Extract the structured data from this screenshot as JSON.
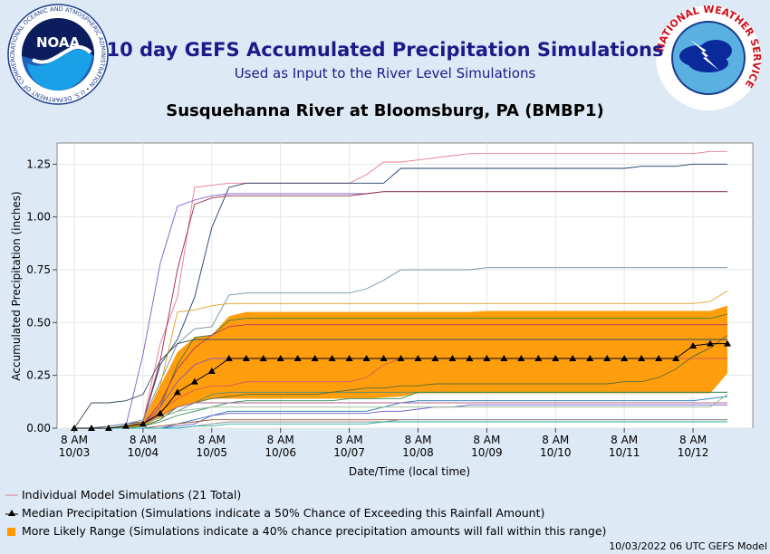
{
  "header": {
    "title": "10 day GEFS Accumulated Precipitation Simulations",
    "subtitle": "Used as Input to the River Level Simulations",
    "station": "Susquehanna River at Bloomsburg, PA (BMBP1)"
  },
  "logos": {
    "noaa": {
      "center_text": "NOAA",
      "ring_text": "NATIONAL OCEANIC AND ATMOSPHERIC ADMINISTRATION • U.S. DEPARTMENT OF COMMERCE"
    },
    "nws": {
      "ring_text": "NATIONAL WEATHER SERVICE"
    }
  },
  "colors": {
    "range_fill": "#ff9900",
    "median": "#000000",
    "accent_title": "#1a1a8a",
    "background": "#dde9f5"
  },
  "chart_data": {
    "type": "line",
    "xlabel": "Date/Time (local time)",
    "ylabel": "Accumulated Precipitation (inches)",
    "ylim": [
      0,
      1.35
    ],
    "xlim": [
      0,
      39
    ],
    "yticks": [
      "0.00",
      "0.25",
      "0.50",
      "0.75",
      "1.00",
      "1.25"
    ],
    "ytick_values": [
      0,
      0.25,
      0.5,
      0.75,
      1.0,
      1.25
    ],
    "xticks": [
      {
        "at": 0,
        "line1": "8 AM",
        "line2": "10/03"
      },
      {
        "at": 4,
        "line1": "8 AM",
        "line2": "10/04"
      },
      {
        "at": 8,
        "line1": "8 AM",
        "line2": "10/05"
      },
      {
        "at": 12,
        "line1": "8 AM",
        "line2": "10/06"
      },
      {
        "at": 16,
        "line1": "8 AM",
        "line2": "10/07"
      },
      {
        "at": 20,
        "line1": "8 AM",
        "line2": "10/08"
      },
      {
        "at": 24,
        "line1": "8 AM",
        "line2": "10/09"
      },
      {
        "at": 28,
        "line1": "8 AM",
        "line2": "10/10"
      },
      {
        "at": 32,
        "line1": "8 AM",
        "line2": "10/11"
      },
      {
        "at": 36,
        "line1": "8 AM",
        "line2": "10/12"
      }
    ],
    "median": {
      "x": [
        0,
        1,
        2,
        3,
        4,
        5,
        6,
        7,
        8,
        9,
        10,
        11,
        12,
        13,
        14,
        15,
        16,
        17,
        18,
        19,
        20,
        21,
        22,
        23,
        24,
        25,
        26,
        27,
        28,
        29,
        30,
        31,
        32,
        33,
        34,
        35,
        36,
        37,
        38
      ],
      "y": [
        0,
        0,
        0,
        0.01,
        0.02,
        0.07,
        0.17,
        0.22,
        0.27,
        0.33,
        0.33,
        0.33,
        0.33,
        0.33,
        0.33,
        0.33,
        0.33,
        0.33,
        0.33,
        0.33,
        0.33,
        0.33,
        0.33,
        0.33,
        0.33,
        0.33,
        0.33,
        0.33,
        0.33,
        0.33,
        0.33,
        0.33,
        0.33,
        0.33,
        0.33,
        0.33,
        0.39,
        0.4,
        0.4
      ]
    },
    "range": {
      "x": [
        0,
        1,
        2,
        3,
        4,
        5,
        6,
        7,
        8,
        9,
        10,
        11,
        12,
        13,
        14,
        15,
        16,
        17,
        18,
        19,
        20,
        21,
        22,
        23,
        24,
        25,
        26,
        27,
        28,
        29,
        30,
        31,
        32,
        33,
        34,
        35,
        36,
        37,
        38
      ],
      "upper": [
        0,
        0,
        0,
        0.01,
        0.03,
        0.2,
        0.36,
        0.43,
        0.44,
        0.53,
        0.55,
        0.55,
        0.55,
        0.55,
        0.55,
        0.55,
        0.55,
        0.55,
        0.55,
        0.55,
        0.55,
        0.55,
        0.55,
        0.55,
        0.555,
        0.555,
        0.555,
        0.555,
        0.555,
        0.555,
        0.555,
        0.555,
        0.555,
        0.555,
        0.555,
        0.555,
        0.555,
        0.555,
        0.58
      ],
      "lower": [
        0,
        0,
        0,
        0,
        0.01,
        0.05,
        0.1,
        0.12,
        0.14,
        0.14,
        0.14,
        0.14,
        0.14,
        0.14,
        0.14,
        0.14,
        0.14,
        0.14,
        0.145,
        0.15,
        0.165,
        0.165,
        0.165,
        0.165,
        0.165,
        0.165,
        0.165,
        0.165,
        0.165,
        0.165,
        0.165,
        0.165,
        0.165,
        0.165,
        0.165,
        0.165,
        0.165,
        0.165,
        0.26
      ]
    },
    "members": [
      {
        "color": "#e87a8f",
        "y": [
          0,
          0,
          0.01,
          0.02,
          0.03,
          0.4,
          0.62,
          1.14,
          1.15,
          1.16,
          1.16,
          1.16,
          1.16,
          1.16,
          1.16,
          1.16,
          1.16,
          1.2,
          1.26,
          1.26,
          1.27,
          1.28,
          1.29,
          1.3,
          1.3,
          1.3,
          1.3,
          1.3,
          1.3,
          1.3,
          1.3,
          1.3,
          1.3,
          1.3,
          1.3,
          1.3,
          1.3,
          1.31,
          1.31
        ]
      },
      {
        "color": "#1f3a6e",
        "y": [
          0,
          0,
          0.01,
          0.02,
          0.03,
          0.3,
          0.42,
          0.62,
          0.95,
          1.14,
          1.16,
          1.16,
          1.16,
          1.16,
          1.16,
          1.16,
          1.16,
          1.16,
          1.16,
          1.23,
          1.23,
          1.23,
          1.23,
          1.23,
          1.23,
          1.23,
          1.23,
          1.23,
          1.23,
          1.23,
          1.23,
          1.23,
          1.23,
          1.24,
          1.24,
          1.24,
          1.25,
          1.25,
          1.25
        ]
      },
      {
        "color": "#7b5cc7",
        "y": [
          0,
          0,
          0,
          0.01,
          0.35,
          0.78,
          1.05,
          1.08,
          1.1,
          1.11,
          1.11,
          1.11,
          1.11,
          1.11,
          1.11,
          1.11,
          1.11,
          1.11,
          1.12,
          1.12,
          1.12,
          1.12,
          1.12,
          1.12,
          1.12,
          1.12,
          1.12,
          1.12,
          1.12,
          1.12,
          1.12,
          1.12,
          1.12,
          1.12,
          1.12,
          1.12,
          1.12,
          1.12,
          1.12
        ]
      },
      {
        "color": "#9b2a4a",
        "y": [
          0,
          0,
          0,
          0.01,
          0.03,
          0.32,
          0.75,
          1.06,
          1.09,
          1.1,
          1.1,
          1.1,
          1.1,
          1.1,
          1.1,
          1.1,
          1.1,
          1.11,
          1.12,
          1.12,
          1.12,
          1.12,
          1.12,
          1.12,
          1.12,
          1.12,
          1.12,
          1.12,
          1.12,
          1.12,
          1.12,
          1.12,
          1.12,
          1.12,
          1.12,
          1.12,
          1.12,
          1.12,
          1.12
        ]
      },
      {
        "color": "#6f8fa8",
        "y": [
          0,
          0,
          0.01,
          0.02,
          0.04,
          0.22,
          0.4,
          0.47,
          0.48,
          0.63,
          0.64,
          0.64,
          0.64,
          0.64,
          0.64,
          0.64,
          0.64,
          0.66,
          0.7,
          0.75,
          0.75,
          0.75,
          0.75,
          0.75,
          0.76,
          0.76,
          0.76,
          0.76,
          0.76,
          0.76,
          0.76,
          0.76,
          0.76,
          0.76,
          0.76,
          0.76,
          0.76,
          0.76,
          0.76
        ]
      },
      {
        "color": "#e0a020",
        "y": [
          0,
          0,
          0,
          0.01,
          0.03,
          0.2,
          0.55,
          0.56,
          0.58,
          0.59,
          0.59,
          0.59,
          0.59,
          0.59,
          0.59,
          0.59,
          0.59,
          0.59,
          0.59,
          0.59,
          0.59,
          0.59,
          0.59,
          0.59,
          0.59,
          0.59,
          0.59,
          0.59,
          0.59,
          0.59,
          0.59,
          0.59,
          0.59,
          0.59,
          0.59,
          0.59,
          0.59,
          0.6,
          0.65
        ]
      },
      {
        "color": "#3a7d3a",
        "y": [
          0,
          0,
          0,
          0.01,
          0.02,
          0.1,
          0.3,
          0.43,
          0.44,
          0.51,
          0.52,
          0.52,
          0.52,
          0.52,
          0.52,
          0.52,
          0.52,
          0.52,
          0.52,
          0.52,
          0.52,
          0.52,
          0.52,
          0.52,
          0.52,
          0.52,
          0.52,
          0.52,
          0.52,
          0.52,
          0.52,
          0.52,
          0.52,
          0.52,
          0.52,
          0.52,
          0.52,
          0.52,
          0.54
        ]
      },
      {
        "color": "#c03060",
        "y": [
          0,
          0,
          0,
          0.01,
          0.02,
          0.12,
          0.28,
          0.38,
          0.44,
          0.48,
          0.49,
          0.49,
          0.49,
          0.49,
          0.49,
          0.49,
          0.49,
          0.49,
          0.49,
          0.49,
          0.49,
          0.49,
          0.49,
          0.49,
          0.49,
          0.49,
          0.49,
          0.49,
          0.49,
          0.49,
          0.49,
          0.49,
          0.49,
          0.49,
          0.49,
          0.49,
          0.49,
          0.49,
          0.49
        ]
      },
      {
        "color": "#4f8c7a",
        "y": [
          0,
          0,
          0,
          0.01,
          0.02,
          0.05,
          0.08,
          0.12,
          0.16,
          0.17,
          0.17,
          0.17,
          0.17,
          0.17,
          0.17,
          0.17,
          0.17,
          0.17,
          0.17,
          0.17,
          0.17,
          0.17,
          0.17,
          0.17,
          0.17,
          0.17,
          0.17,
          0.17,
          0.17,
          0.17,
          0.17,
          0.17,
          0.17,
          0.17,
          0.17,
          0.17,
          0.17,
          0.17,
          0.17
        ]
      },
      {
        "color": "#8855aa",
        "y": [
          0,
          0,
          0,
          0.01,
          0.02,
          0.1,
          0.22,
          0.3,
          0.33,
          0.33,
          0.33,
          0.33,
          0.33,
          0.33,
          0.33,
          0.33,
          0.33,
          0.33,
          0.33,
          0.33,
          0.33,
          0.33,
          0.33,
          0.33,
          0.33,
          0.33,
          0.33,
          0.33,
          0.33,
          0.33,
          0.33,
          0.33,
          0.33,
          0.33,
          0.33,
          0.33,
          0.33,
          0.33,
          0.33
        ]
      },
      {
        "color": "#d05a5a",
        "y": [
          0,
          0,
          0,
          0.01,
          0.02,
          0.08,
          0.14,
          0.18,
          0.2,
          0.2,
          0.22,
          0.22,
          0.22,
          0.22,
          0.22,
          0.22,
          0.22,
          0.24,
          0.3,
          0.33,
          0.33,
          0.33,
          0.33,
          0.33,
          0.33,
          0.33,
          0.33,
          0.33,
          0.33,
          0.33,
          0.33,
          0.33,
          0.33,
          0.33,
          0.33,
          0.33,
          0.33,
          0.33,
          0.33
        ]
      },
      {
        "color": "#556b2f",
        "y": [
          0,
          0,
          0,
          0,
          0.01,
          0.04,
          0.1,
          0.12,
          0.14,
          0.15,
          0.16,
          0.16,
          0.16,
          0.16,
          0.16,
          0.17,
          0.18,
          0.19,
          0.19,
          0.2,
          0.2,
          0.21,
          0.21,
          0.21,
          0.21,
          0.21,
          0.21,
          0.21,
          0.21,
          0.21,
          0.21,
          0.21,
          0.22,
          0.22,
          0.24,
          0.28,
          0.34,
          0.38,
          0.44
        ]
      },
      {
        "color": "#2e8b57",
        "y": [
          0,
          0,
          0,
          0,
          0.01,
          0.03,
          0.06,
          0.08,
          0.1,
          0.12,
          0.13,
          0.13,
          0.13,
          0.13,
          0.13,
          0.13,
          0.14,
          0.14,
          0.14,
          0.14,
          0.17,
          0.17,
          0.17,
          0.17,
          0.17,
          0.17,
          0.17,
          0.17,
          0.17,
          0.17,
          0.17,
          0.17,
          0.17,
          0.17,
          0.17,
          0.17,
          0.17,
          0.17,
          0.17
        ]
      },
      {
        "color": "#1f77b4",
        "y": [
          0,
          0,
          0,
          0,
          0,
          0,
          0.02,
          0.04,
          0.06,
          0.08,
          0.08,
          0.08,
          0.08,
          0.08,
          0.08,
          0.08,
          0.08,
          0.08,
          0.1,
          0.12,
          0.13,
          0.13,
          0.13,
          0.13,
          0.13,
          0.13,
          0.13,
          0.13,
          0.13,
          0.13,
          0.13,
          0.13,
          0.13,
          0.13,
          0.13,
          0.13,
          0.13,
          0.14,
          0.15
        ]
      },
      {
        "color": "#6a5acd",
        "y": [
          0,
          0,
          0,
          0,
          0,
          0,
          0.01,
          0.02,
          0.06,
          0.07,
          0.07,
          0.07,
          0.07,
          0.07,
          0.07,
          0.07,
          0.07,
          0.07,
          0.08,
          0.08,
          0.09,
          0.1,
          0.1,
          0.11,
          0.11,
          0.11,
          0.11,
          0.11,
          0.11,
          0.11,
          0.11,
          0.11,
          0.11,
          0.11,
          0.11,
          0.11,
          0.11,
          0.11,
          0.11
        ]
      },
      {
        "color": "#a0522d",
        "y": [
          0,
          0,
          0,
          0,
          0,
          0.01,
          0.02,
          0.03,
          0.04,
          0.04,
          0.04,
          0.04,
          0.04,
          0.04,
          0.04,
          0.04,
          0.04,
          0.04,
          0.04,
          0.04,
          0.04,
          0.04,
          0.04,
          0.04,
          0.04,
          0.04,
          0.04,
          0.04,
          0.04,
          0.04,
          0.04,
          0.04,
          0.04,
          0.04,
          0.04,
          0.04,
          0.04,
          0.04,
          0.04
        ]
      },
      {
        "color": "#888888",
        "y": [
          0,
          0,
          0,
          0,
          0,
          0,
          0,
          0.01,
          0.02,
          0.03,
          0.03,
          0.03,
          0.03,
          0.03,
          0.03,
          0.03,
          0.03,
          0.03,
          0.03,
          0.04,
          0.04,
          0.04,
          0.04,
          0.04,
          0.04,
          0.04,
          0.04,
          0.04,
          0.04,
          0.04,
          0.04,
          0.04,
          0.04,
          0.04,
          0.04,
          0.04,
          0.04,
          0.04,
          0.04
        ]
      },
      {
        "color": "#20b2aa",
        "y": [
          0,
          0,
          0,
          0,
          0,
          0,
          0,
          0.01,
          0.01,
          0.02,
          0.02,
          0.02,
          0.02,
          0.02,
          0.02,
          0.02,
          0.02,
          0.02,
          0.03,
          0.03,
          0.03,
          0.03,
          0.03,
          0.03,
          0.03,
          0.03,
          0.03,
          0.03,
          0.03,
          0.03,
          0.03,
          0.03,
          0.03,
          0.03,
          0.03,
          0.03,
          0.03,
          0.03,
          0.03
        ]
      },
      {
        "color": "#34495e",
        "y": [
          0,
          0.12,
          0.12,
          0.13,
          0.16,
          0.32,
          0.4,
          0.42,
          0.42,
          0.42,
          0.42,
          0.42,
          0.42,
          0.42,
          0.42,
          0.42,
          0.42,
          0.42,
          0.42,
          0.42,
          0.42,
          0.42,
          0.42,
          0.42,
          0.42,
          0.42,
          0.42,
          0.42,
          0.42,
          0.42,
          0.42,
          0.42,
          0.42,
          0.42,
          0.42,
          0.42,
          0.42,
          0.42,
          0.42
        ]
      },
      {
        "color": "#b06090",
        "y": [
          0,
          0,
          0,
          0.01,
          0.02,
          0.06,
          0.1,
          0.12,
          0.12,
          0.12,
          0.12,
          0.12,
          0.12,
          0.12,
          0.12,
          0.12,
          0.12,
          0.12,
          0.12,
          0.12,
          0.12,
          0.12,
          0.12,
          0.12,
          0.12,
          0.12,
          0.12,
          0.12,
          0.12,
          0.12,
          0.12,
          0.12,
          0.12,
          0.12,
          0.12,
          0.12,
          0.12,
          0.12,
          0.12
        ]
      },
      {
        "color": "#8fbc8f",
        "y": [
          0,
          0,
          0,
          0.01,
          0.02,
          0.05,
          0.08,
          0.09,
          0.1,
          0.1,
          0.1,
          0.1,
          0.1,
          0.1,
          0.1,
          0.1,
          0.1,
          0.1,
          0.1,
          0.1,
          0.1,
          0.1,
          0.1,
          0.1,
          0.1,
          0.1,
          0.1,
          0.1,
          0.1,
          0.1,
          0.1,
          0.1,
          0.1,
          0.1,
          0.1,
          0.1,
          0.1,
          0.1,
          0.16
        ]
      }
    ]
  },
  "legend": {
    "individual": "Individual Model Simulations (21 Total)",
    "median": "Median Precipitation (Simulations indicate a 50% Chance of Exceeding this Rainfall Amount)",
    "range": "More Likely Range (Simulations indicate a 40% chance precipitation amounts will fall within this range)"
  },
  "footer": "10/03/2022 06 UTC GEFS Model"
}
